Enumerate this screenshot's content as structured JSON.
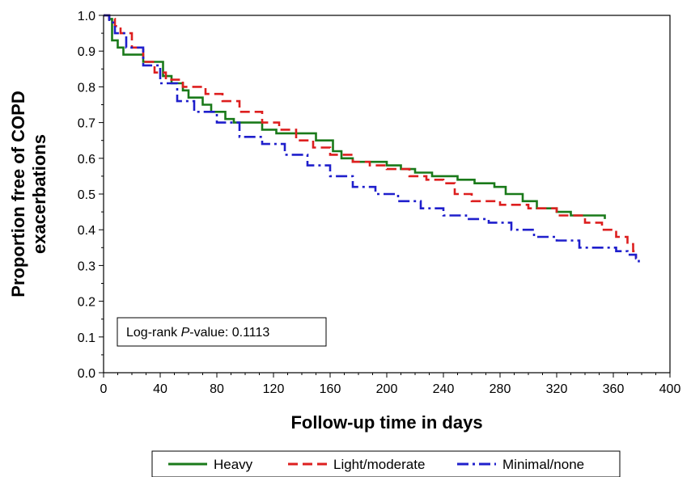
{
  "chart_data": {
    "type": "line",
    "subtype": "kaplan-meier step",
    "xlabel": "Follow-up time in days",
    "ylabel_lines": [
      "Proportion free of COPD",
      "exacerbations"
    ],
    "xlim": [
      0,
      400
    ],
    "ylim": [
      0,
      1.0
    ],
    "xticks": [
      "0",
      "40",
      "80",
      "120",
      "160",
      "200",
      "240",
      "280",
      "320",
      "360",
      "400"
    ],
    "yticks": [
      "0.0",
      "0.1",
      "0.2",
      "0.3",
      "0.4",
      "0.5",
      "0.6",
      "0.7",
      "0.8",
      "0.9",
      "1.0"
    ],
    "grid": false,
    "legend_position": "bottom",
    "annotation": {
      "prefix": "Log-rank ",
      "italic": "P",
      "suffix": "-value: 0.1113"
    },
    "series": [
      {
        "name": "Heavy",
        "color": "#1a7a1a",
        "dash": "solid",
        "points": [
          [
            0,
            1.0
          ],
          [
            4,
            0.99
          ],
          [
            6,
            0.93
          ],
          [
            10,
            0.91
          ],
          [
            14,
            0.89
          ],
          [
            28,
            0.87
          ],
          [
            42,
            0.83
          ],
          [
            48,
            0.81
          ],
          [
            56,
            0.79
          ],
          [
            60,
            0.77
          ],
          [
            70,
            0.75
          ],
          [
            76,
            0.73
          ],
          [
            86,
            0.71
          ],
          [
            92,
            0.7
          ],
          [
            112,
            0.68
          ],
          [
            122,
            0.67
          ],
          [
            126,
            0.67
          ],
          [
            140,
            0.67
          ],
          [
            150,
            0.65
          ],
          [
            162,
            0.62
          ],
          [
            168,
            0.6
          ],
          [
            176,
            0.59
          ],
          [
            200,
            0.58
          ],
          [
            210,
            0.57
          ],
          [
            220,
            0.56
          ],
          [
            232,
            0.55
          ],
          [
            250,
            0.54
          ],
          [
            262,
            0.53
          ],
          [
            276,
            0.52
          ],
          [
            284,
            0.5
          ],
          [
            296,
            0.48
          ],
          [
            306,
            0.46
          ],
          [
            320,
            0.45
          ],
          [
            330,
            0.44
          ],
          [
            340,
            0.44
          ],
          [
            354,
            0.44
          ],
          [
            354,
            0.43
          ]
        ]
      },
      {
        "name": "Light/moderate",
        "color": "#dd1f1f",
        "dash": "dashed",
        "points": [
          [
            0,
            1.0
          ],
          [
            4,
            0.99
          ],
          [
            8,
            0.97
          ],
          [
            12,
            0.95
          ],
          [
            20,
            0.91
          ],
          [
            28,
            0.87
          ],
          [
            36,
            0.84
          ],
          [
            44,
            0.82
          ],
          [
            56,
            0.8
          ],
          [
            72,
            0.78
          ],
          [
            84,
            0.76
          ],
          [
            96,
            0.73
          ],
          [
            112,
            0.7
          ],
          [
            124,
            0.68
          ],
          [
            136,
            0.65
          ],
          [
            148,
            0.63
          ],
          [
            160,
            0.61
          ],
          [
            176,
            0.59
          ],
          [
            188,
            0.58
          ],
          [
            200,
            0.57
          ],
          [
            216,
            0.55
          ],
          [
            228,
            0.54
          ],
          [
            240,
            0.53
          ],
          [
            248,
            0.5
          ],
          [
            260,
            0.48
          ],
          [
            280,
            0.47
          ],
          [
            300,
            0.46
          ],
          [
            320,
            0.44
          ],
          [
            340,
            0.42
          ],
          [
            352,
            0.4
          ],
          [
            362,
            0.38
          ],
          [
            370,
            0.36
          ],
          [
            374,
            0.34
          ],
          [
            376,
            0.32
          ]
        ]
      },
      {
        "name": "Minimal/none",
        "color": "#1f1fcc",
        "dash": "dash-dot",
        "points": [
          [
            0,
            1.0
          ],
          [
            4,
            0.98
          ],
          [
            8,
            0.95
          ],
          [
            16,
            0.91
          ],
          [
            28,
            0.86
          ],
          [
            40,
            0.81
          ],
          [
            52,
            0.76
          ],
          [
            64,
            0.73
          ],
          [
            80,
            0.7
          ],
          [
            96,
            0.66
          ],
          [
            112,
            0.64
          ],
          [
            128,
            0.61
          ],
          [
            144,
            0.58
          ],
          [
            160,
            0.55
          ],
          [
            176,
            0.52
          ],
          [
            192,
            0.5
          ],
          [
            208,
            0.48
          ],
          [
            224,
            0.46
          ],
          [
            240,
            0.44
          ],
          [
            256,
            0.43
          ],
          [
            272,
            0.42
          ],
          [
            288,
            0.4
          ],
          [
            304,
            0.38
          ],
          [
            320,
            0.37
          ],
          [
            336,
            0.35
          ],
          [
            352,
            0.35
          ],
          [
            362,
            0.34
          ],
          [
            370,
            0.33
          ],
          [
            376,
            0.32
          ],
          [
            378,
            0.3
          ]
        ]
      }
    ]
  }
}
